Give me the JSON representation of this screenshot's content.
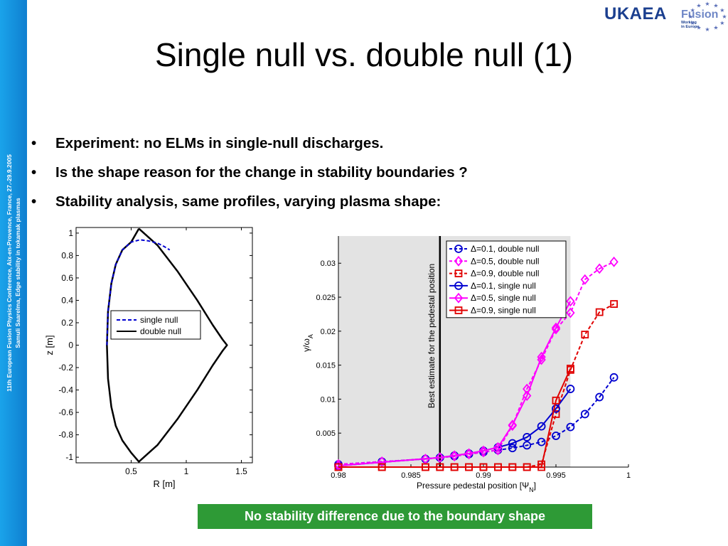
{
  "sidebar": {
    "line1": "11th European Fusion Physics Conference, Aix-en-Provence, France, 27.-29.9.2005",
    "line2": "Samuli Saarelma, Edge stability in tokamak plasmas"
  },
  "logo": {
    "name": "UKAEA",
    "fusion": "Fusion",
    "sub1": "Working",
    "sub2": "in Europe"
  },
  "title": "Single null vs. double null (1)",
  "bullets": [
    "Experiment: no ELMs in single-null discharges.",
    "Is the shape reason for the change in stability boundaries ?",
    "Stability analysis, same profiles, varying plasma shape:"
  ],
  "callout": "No stability difference due to the boundary shape",
  "colors": {
    "sidebar": "#1690dc",
    "blue": "#0000d0",
    "magenta": "#ff00ff",
    "red": "#e00000",
    "callout": "#2e9a36",
    "logo": "#1b3f8f"
  },
  "chart_data": [
    {
      "type": "line",
      "title": "",
      "xlabel": "R [m]",
      "ylabel": "z [m]",
      "xlim": [
        0.0,
        1.6
      ],
      "ylim": [
        -1.05,
        1.05
      ],
      "xticks": [
        "0.5",
        "1",
        "1.5"
      ],
      "yticks": [
        "1",
        "0.8",
        "0.6",
        "0.4",
        "0.2",
        "0",
        "-0.2",
        "-0.4",
        "-0.6",
        "-0.8",
        "-1"
      ],
      "legend": {
        "position": "center",
        "entries": [
          "single null",
          "double null"
        ]
      },
      "series": [
        {
          "name": "single null",
          "style": "dashed",
          "color": "#0000d0",
          "x": [
            0.28,
            0.29,
            0.32,
            0.36,
            0.42,
            0.5,
            0.58,
            0.66,
            0.74,
            0.8,
            0.85
          ],
          "y": [
            0.0,
            0.3,
            0.55,
            0.72,
            0.85,
            0.92,
            0.94,
            0.93,
            0.91,
            0.88,
            0.85
          ]
        },
        {
          "name": "double null",
          "style": "solid",
          "color": "#000000",
          "x": [
            0.57,
            0.5,
            0.42,
            0.36,
            0.32,
            0.29,
            0.28,
            0.29,
            0.32,
            0.36,
            0.42,
            0.5,
            0.57,
            0.74,
            0.92,
            1.1,
            1.24,
            1.33,
            1.37,
            1.33,
            1.24,
            1.1,
            0.92,
            0.74,
            0.57
          ],
          "y": [
            1.04,
            0.92,
            0.85,
            0.72,
            0.55,
            0.3,
            0.0,
            -0.3,
            -0.55,
            -0.72,
            -0.85,
            -0.96,
            -1.04,
            -0.89,
            -0.66,
            -0.4,
            -0.18,
            -0.05,
            0.0,
            0.05,
            0.18,
            0.4,
            0.66,
            0.89,
            1.04
          ]
        }
      ]
    },
    {
      "type": "line",
      "title": "",
      "xlabel": "Pressure pedestal position [Ψ_N]",
      "ylabel": "γ/ω_A",
      "xlim": [
        0.98,
        1.0
      ],
      "ylim": [
        0,
        0.034
      ],
      "xticks": [
        "0.98",
        "0.985",
        "0.99",
        "0.995",
        "1"
      ],
      "yticks": [
        "0.03",
        "0.025",
        "0.02",
        "0.015",
        "0.01",
        "0.005"
      ],
      "annotation": "Best estimate for the pedestal position",
      "annotation_x": 0.987,
      "shaded_region": [
        0.98,
        0.996
      ],
      "legend": {
        "position": "top-right"
      },
      "series": [
        {
          "name": "Δ=0.1, double null",
          "color": "#0000d0",
          "style": "dashed",
          "marker": "circle",
          "x": [
            0.98,
            0.983,
            0.986,
            0.987,
            0.988,
            0.989,
            0.99,
            0.991,
            0.992,
            0.993,
            0.994,
            0.995,
            0.996,
            0.997,
            0.998,
            0.999
          ],
          "y": [
            0.0004,
            0.0008,
            0.0012,
            0.0014,
            0.0016,
            0.0019,
            0.0022,
            0.0025,
            0.0028,
            0.0032,
            0.0037,
            0.0046,
            0.0059,
            0.0078,
            0.0103,
            0.0132
          ]
        },
        {
          "name": "Δ=0.5, double null",
          "color": "#ff00ff",
          "style": "dashed",
          "marker": "diamond",
          "x": [
            0.98,
            0.983,
            0.986,
            0.987,
            0.988,
            0.989,
            0.99,
            0.991,
            0.992,
            0.993,
            0.994,
            0.995,
            0.996,
            0.997,
            0.998,
            0.999
          ],
          "y": [
            0.0004,
            0.0008,
            0.0012,
            0.0014,
            0.0016,
            0.0019,
            0.0022,
            0.0025,
            0.0061,
            0.0115,
            0.0158,
            0.0203,
            0.0227,
            0.0276,
            0.0292,
            0.0302
          ]
        },
        {
          "name": "Δ=0.9, double null",
          "color": "#e00000",
          "style": "dashed",
          "marker": "square",
          "x": [
            0.98,
            0.983,
            0.986,
            0.987,
            0.988,
            0.989,
            0.99,
            0.991,
            0.992,
            0.993,
            0.994,
            0.995,
            0.996,
            0.997,
            0.998,
            0.999
          ],
          "y": [
            0.0,
            0.0,
            0.0,
            0.0,
            0.0,
            0.0,
            0.0,
            0.0,
            0.0,
            0.0,
            0.0004,
            0.0078,
            0.0143,
            0.0195,
            0.0228,
            0.024
          ]
        },
        {
          "name": "Δ=0.1, single null",
          "color": "#0000d0",
          "style": "solid",
          "marker": "circle",
          "x": [
            0.98,
            0.987,
            0.988,
            0.989,
            0.99,
            0.991,
            0.992,
            0.993,
            0.994,
            0.995,
            0.996
          ],
          "y": [
            0.0002,
            0.0014,
            0.0017,
            0.002,
            0.0024,
            0.0029,
            0.0035,
            0.0044,
            0.006,
            0.0086,
            0.0115
          ]
        },
        {
          "name": "Δ=0.5, single null",
          "color": "#ff00ff",
          "style": "solid",
          "marker": "diamond",
          "x": [
            0.98,
            0.987,
            0.988,
            0.989,
            0.99,
            0.991,
            0.992,
            0.993,
            0.994,
            0.995,
            0.996
          ],
          "y": [
            0.0002,
            0.0014,
            0.0017,
            0.002,
            0.0024,
            0.0029,
            0.0062,
            0.0105,
            0.0162,
            0.0205,
            0.0244
          ]
        },
        {
          "name": "Δ=0.9, single null",
          "color": "#e00000",
          "style": "solid",
          "marker": "square",
          "x": [
            0.98,
            0.983,
            0.986,
            0.987,
            0.988,
            0.989,
            0.99,
            0.991,
            0.992,
            0.993,
            0.994,
            0.995,
            0.996
          ],
          "y": [
            0.0,
            0.0,
            0.0,
            0.0,
            0.0,
            0.0,
            0.0,
            0.0,
            0.0,
            0.0,
            0.0,
            0.0098,
            0.0145
          ]
        }
      ]
    }
  ]
}
